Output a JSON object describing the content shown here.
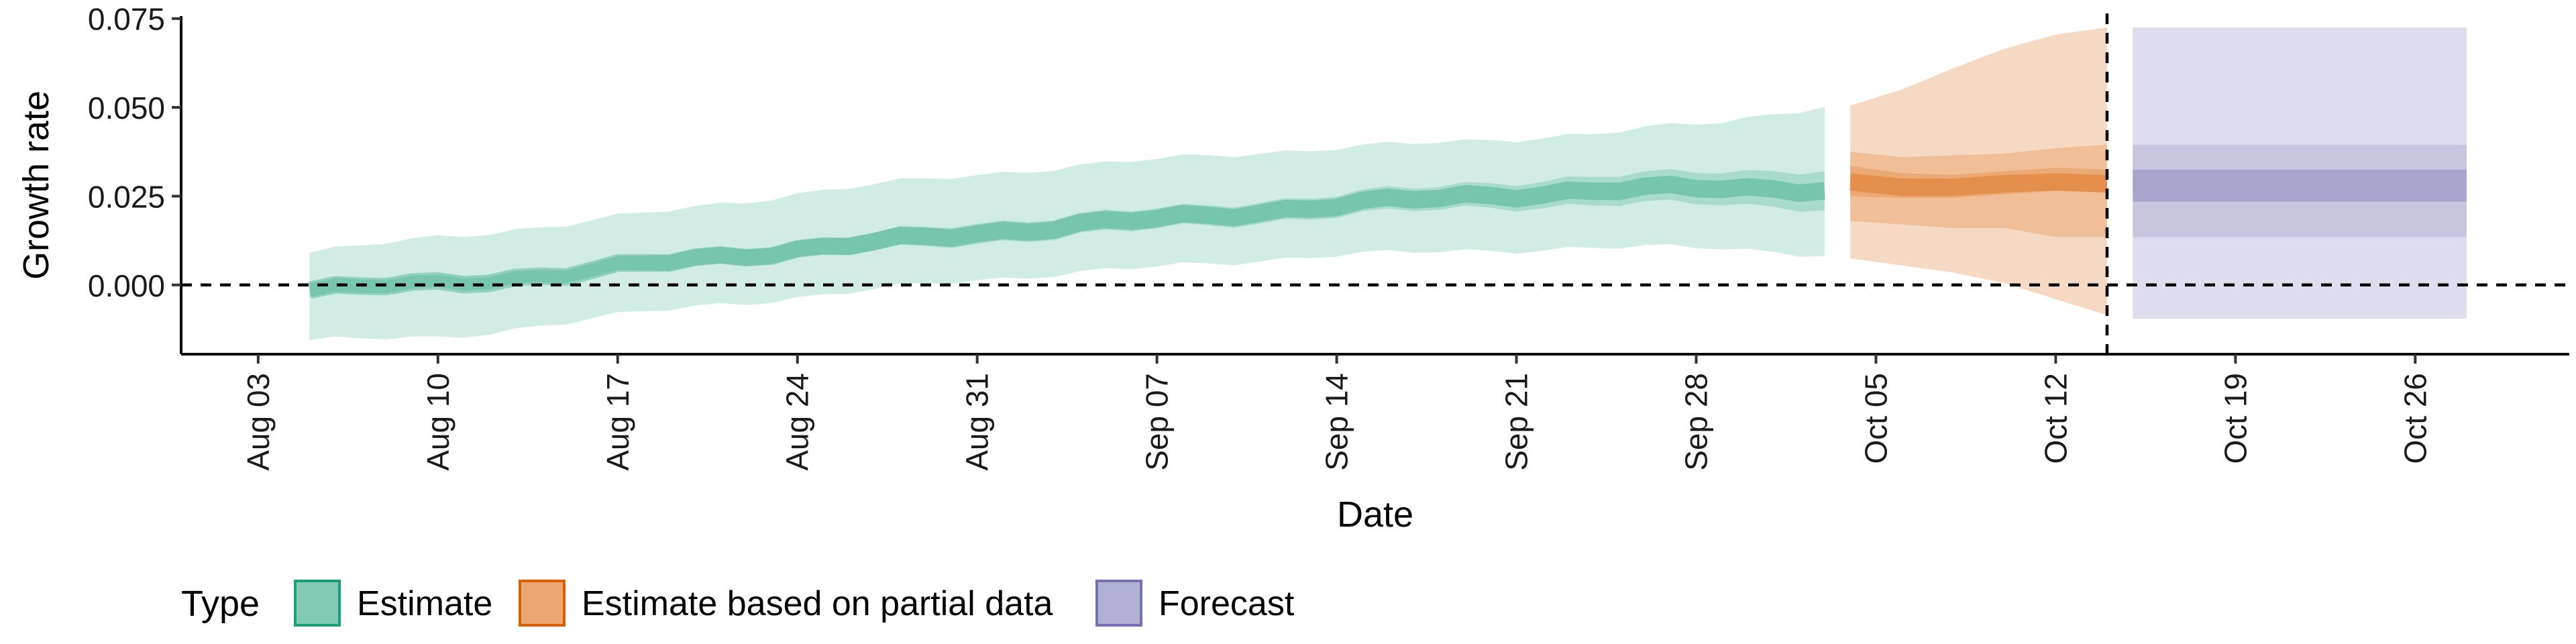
{
  "chart_data": {
    "type": "area",
    "xlabel": "Date",
    "ylabel": "Growth rate",
    "x_domain": [
      "2020-07-31",
      "2020-11-01"
    ],
    "ylim": [
      -0.0195,
      0.0757
    ],
    "y_ticks": [
      0,
      0.025,
      0.05,
      0.075
    ],
    "y_tick_labels": [
      "0.000",
      "0.025",
      "0.050",
      "0.075"
    ],
    "x_ticks": [
      "2020-08-03",
      "2020-08-10",
      "2020-08-17",
      "2020-08-24",
      "2020-08-31",
      "2020-09-07",
      "2020-09-14",
      "2020-09-21",
      "2020-09-28",
      "2020-10-05",
      "2020-10-12",
      "2020-10-19",
      "2020-10-26"
    ],
    "x_tick_labels": [
      "Aug 03",
      "Aug 10",
      "Aug 17",
      "Aug 24",
      "Aug 31",
      "Sep 07",
      "Sep 14",
      "Sep 21",
      "Sep 28",
      "Oct 05",
      "Oct 12",
      "Oct 19",
      "Oct 26"
    ],
    "reference_lines": {
      "y": 0,
      "x": "2020-10-14"
    },
    "grid": false,
    "legend": {
      "position": "bottom-left",
      "title": "Type",
      "entries": [
        {
          "label": "Estimate",
          "color": "#1b9e77"
        },
        {
          "label": "Estimate based on partial data",
          "color": "#d95f02"
        },
        {
          "label": "Forecast",
          "color": "#7570b3"
        }
      ]
    },
    "series": [
      {
        "name": "Estimate",
        "color": "#1b9e77",
        "dates": [
          "2020-08-05",
          "2020-08-10",
          "2020-08-15",
          "2020-08-20",
          "2020-08-25",
          "2020-08-30",
          "2020-09-04",
          "2020-09-09",
          "2020-09-14",
          "2020-09-19",
          "2020-09-24",
          "2020-09-29",
          "2020-10-03"
        ],
        "median": [
          -0.0015,
          0.0005,
          0.003,
          0.0075,
          0.0105,
          0.014,
          0.017,
          0.0195,
          0.0225,
          0.025,
          0.0265,
          0.0275,
          0.027
        ],
        "lower_50": [
          -0.0035,
          -0.0012,
          0.0013,
          0.0052,
          0.0082,
          0.0112,
          0.0142,
          0.0167,
          0.0195,
          0.0217,
          0.0225,
          0.023,
          0.0215
        ],
        "upper_50": [
          0.0005,
          0.0022,
          0.0048,
          0.0098,
          0.0128,
          0.0168,
          0.0198,
          0.0223,
          0.0255,
          0.0283,
          0.0305,
          0.032,
          0.0325
        ],
        "lower_90": [
          -0.0155,
          -0.015,
          -0.0105,
          -0.006,
          -0.003,
          0.001,
          0.0035,
          0.006,
          0.0085,
          0.0095,
          0.0105,
          0.0105,
          0.0085
        ],
        "upper_90": [
          0.009,
          0.0135,
          0.017,
          0.022,
          0.0265,
          0.0305,
          0.0335,
          0.0365,
          0.0385,
          0.0405,
          0.0425,
          0.046,
          0.0505
        ]
      },
      {
        "name": "Estimate based on partial data",
        "color": "#d95f02",
        "dates": [
          "2020-10-04",
          "2020-10-06",
          "2020-10-08",
          "2020-10-10",
          "2020-10-12",
          "2020-10-14"
        ],
        "median": [
          0.029,
          0.0275,
          0.0275,
          0.0285,
          0.029,
          0.0285
        ],
        "lower_50": [
          0.025,
          0.0245,
          0.0245,
          0.0255,
          0.0265,
          0.026
        ],
        "upper_50": [
          0.0335,
          0.0315,
          0.031,
          0.032,
          0.033,
          0.0325
        ],
        "lower_90": [
          0.018,
          0.017,
          0.016,
          0.016,
          0.0135,
          0.0135
        ],
        "upper_90": [
          0.0375,
          0.036,
          0.0365,
          0.037,
          0.0385,
          0.0395
        ],
        "lower_full": [
          0.0075,
          0.0055,
          0.0035,
          0.0005,
          -0.004,
          -0.0085
        ],
        "upper_full": [
          0.0505,
          0.055,
          0.061,
          0.0665,
          0.0705,
          0.0725
        ]
      },
      {
        "name": "Forecast",
        "color": "#7570b3",
        "dates": [
          "2020-10-15",
          "2020-10-28"
        ],
        "median": [
          0.028,
          0.028
        ],
        "lower_50": [
          0.0235,
          0.0235
        ],
        "upper_50": [
          0.0325,
          0.0325
        ],
        "lower_90": [
          0.0135,
          0.0135
        ],
        "upper_90": [
          0.0395,
          0.0395
        ],
        "lower_full": [
          -0.0095,
          -0.0095
        ],
        "upper_full": [
          0.0725,
          0.0725
        ]
      }
    ]
  }
}
